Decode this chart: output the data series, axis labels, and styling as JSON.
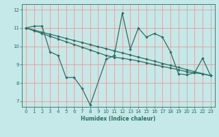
{
  "xlabel": "Humidex (Indice chaleur)",
  "background_color": "#c5e8e8",
  "grid_color": "#e89090",
  "line_color": "#2a6e60",
  "xlim": [
    -0.5,
    23.5
  ],
  "ylim": [
    6.7,
    12.3
  ],
  "yticks": [
    7,
    8,
    9,
    10,
    11,
    12
  ],
  "xticks": [
    0,
    1,
    2,
    3,
    4,
    5,
    6,
    7,
    8,
    9,
    10,
    11,
    12,
    13,
    14,
    15,
    16,
    17,
    18,
    19,
    20,
    21,
    22,
    23
  ],
  "series1_x": [
    0,
    1,
    2,
    3,
    4,
    5,
    6,
    7,
    8,
    10,
    11,
    12,
    13,
    14,
    15,
    16,
    17,
    18,
    19,
    20,
    21,
    22,
    23
  ],
  "series1_y": [
    11.0,
    11.1,
    11.1,
    9.7,
    9.5,
    8.3,
    8.3,
    7.7,
    6.8,
    9.3,
    9.5,
    11.8,
    9.85,
    11.0,
    10.5,
    10.7,
    10.5,
    9.7,
    8.5,
    8.45,
    8.55,
    9.35,
    8.4
  ],
  "series2_x": [
    0,
    1,
    2,
    3,
    4,
    5,
    6,
    7,
    8,
    9,
    10,
    11,
    12,
    13,
    14,
    15,
    16,
    17,
    18,
    19,
    20,
    21,
    22,
    23
  ],
  "series2_y": [
    11.0,
    10.89,
    10.77,
    10.66,
    10.55,
    10.43,
    10.32,
    10.21,
    10.09,
    9.98,
    9.87,
    9.75,
    9.64,
    9.53,
    9.41,
    9.3,
    9.19,
    9.07,
    8.96,
    8.85,
    8.73,
    8.62,
    8.51,
    8.4
  ],
  "series3_x": [
    0,
    1,
    2,
    3,
    4,
    5,
    6,
    7,
    8,
    9,
    10,
    11,
    12,
    13,
    14,
    15,
    16,
    17,
    18,
    19,
    20,
    21,
    22,
    23
  ],
  "series3_y": [
    11.0,
    10.85,
    10.7,
    10.55,
    10.4,
    10.25,
    10.1,
    9.95,
    9.8,
    9.65,
    9.5,
    9.4,
    9.35,
    9.28,
    9.2,
    9.1,
    9.0,
    8.9,
    8.82,
    8.72,
    8.62,
    8.55,
    8.5,
    8.4
  ]
}
